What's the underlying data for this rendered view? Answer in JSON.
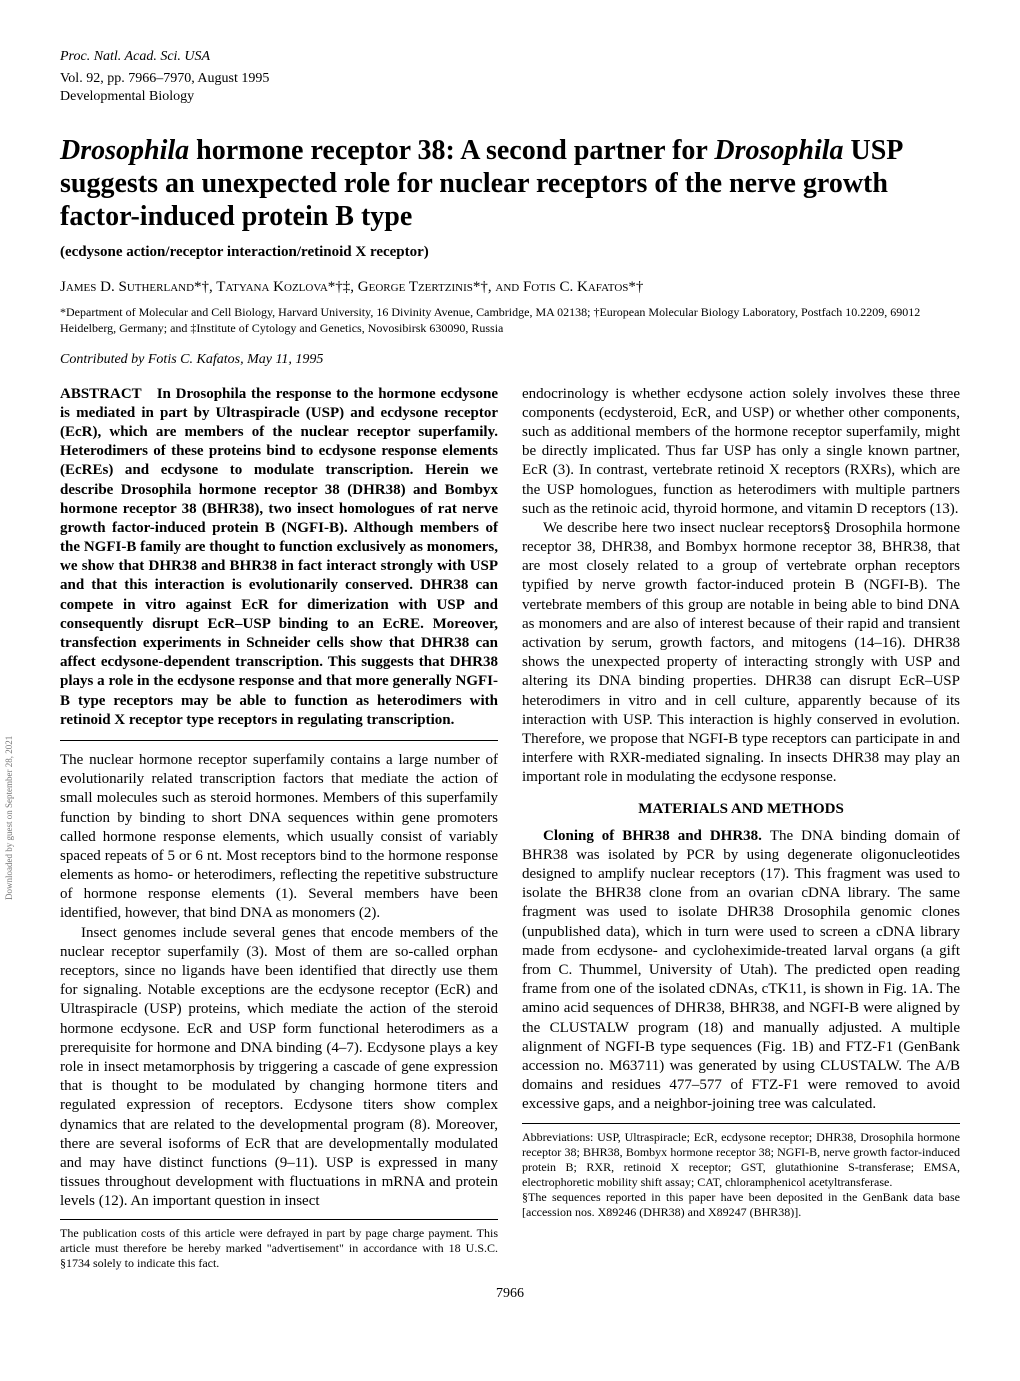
{
  "journal": {
    "line1": "Proc. Natl. Acad. Sci. USA",
    "line2": "Vol. 92, pp. 7966–7970, August 1995",
    "line3": "Developmental Biology"
  },
  "title": {
    "pre": "Drosophila",
    "mid": " hormone receptor 38: A second partner for ",
    "post_italic": "Drosophila",
    "rest": " USP suggests an unexpected role for nuclear receptors of the nerve growth factor-induced protein B type"
  },
  "subtitle": "(ecdysone action/receptor interaction/retinoid X receptor)",
  "authors": "James D. Sutherland*†, Tatyana Kozlova*†‡, George Tzertzinis*†, and Fotis C. Kafatos*†",
  "affiliations": "*Department of Molecular and Cell Biology, Harvard University, 16 Divinity Avenue, Cambridge, MA 02138; †European Molecular Biology Laboratory, Postfach 10.2209, 69012 Heidelberg, Germany; and ‡Institute of Cytology and Genetics, Novosibirsk 630090, Russia",
  "contributed": "Contributed by Fotis C. Kafatos, May 11, 1995",
  "abstract": {
    "label": "ABSTRACT ",
    "text": "In Drosophila the response to the hormone ecdysone is mediated in part by Ultraspiracle (USP) and ecdysone receptor (EcR), which are members of the nuclear receptor superfamily. Heterodimers of these proteins bind to ecdysone response elements (EcREs) and ecdysone to modulate transcription. Herein we describe Drosophila hormone receptor 38 (DHR38) and Bombyx hormone receptor 38 (BHR38), two insect homologues of rat nerve growth factor-induced protein B (NGFI-B). Although members of the NGFI-B family are thought to function exclusively as monomers, we show that DHR38 and BHR38 in fact interact strongly with USP and that this interaction is evolutionarily conserved. DHR38 can compete in vitro against EcR for dimerization with USP and consequently disrupt EcR–USP binding to an EcRE. Moreover, transfection experiments in Schneider cells show that DHR38 can affect ecdysone-dependent transcription. This suggests that DHR38 plays a role in the ecdysone response and that more generally NGFI-B type receptors may be able to function as heterodimers with retinoid X receptor type receptors in regulating transcription."
  },
  "body": {
    "p1": "The nuclear hormone receptor superfamily contains a large number of evolutionarily related transcription factors that mediate the action of small molecules such as steroid hormones. Members of this superfamily function by binding to short DNA sequences within gene promoters called hormone response elements, which usually consist of variably spaced repeats of 5 or 6 nt. Most receptors bind to the hormone response elements as homo- or heterodimers, reflecting the repetitive substructure of hormone response elements (1). Several members have been identified, however, that bind DNA as monomers (2).",
    "p2": "Insect genomes include several genes that encode members of the nuclear receptor superfamily (3). Most of them are so-called orphan receptors, since no ligands have been identified that directly use them for signaling. Notable exceptions are the ecdysone receptor (EcR) and Ultraspiracle (USP) proteins, which mediate the action of the steroid hormone ecdysone. EcR and USP form functional heterodimers as a prerequisite for hormone and DNA binding (4–7). Ecdysone plays a key role in insect metamorphosis by triggering a cascade of gene expression that is thought to be modulated by changing hormone titers and regulated expression of receptors. Ecdysone titers show complex dynamics that are related to the developmental program (8). Moreover, there are several isoforms of EcR that are developmentally modulated and may have distinct functions (9–11). USP is expressed in many tissues throughout development with fluctuations in mRNA and protein levels (12). An important question in insect",
    "p3": "endocrinology is whether ecdysone action solely involves these three components (ecdysteroid, EcR, and USP) or whether other components, such as additional members of the hormone receptor superfamily, might be directly implicated. Thus far USP has only a single known partner, EcR (3). In contrast, vertebrate retinoid X receptors (RXRs), which are the USP homologues, function as heterodimers with multiple partners such as the retinoic acid, thyroid hormone, and vitamin D receptors (13).",
    "p4": "We describe here two insect nuclear receptors§ Drosophila hormone receptor 38, DHR38, and Bombyx hormone receptor 38, BHR38, that are most closely related to a group of vertebrate orphan receptors typified by nerve growth factor-induced protein B (NGFI-B). The vertebrate members of this group are notable in being able to bind DNA as monomers and are also of interest because of their rapid and transient activation by serum, growth factors, and mitogens (14–16). DHR38 shows the unexpected property of interacting strongly with USP and altering its DNA binding properties. DHR38 can disrupt EcR–USP heterodimers in vitro and in cell culture, apparently because of its interaction with USP. This interaction is highly conserved in evolution. Therefore, we propose that NGFI-B type receptors can participate in and interfere with RXR-mediated signaling. In insects DHR38 may play an important role in modulating the ecdysone response.",
    "methods_heading": "MATERIALS AND METHODS",
    "m1_head": "Cloning of BHR38 and DHR38. ",
    "m1": "The DNA binding domain of BHR38 was isolated by PCR by using degenerate oligonucleotides designed to amplify nuclear receptors (17). This fragment was used to isolate the BHR38 clone from an ovarian cDNA library. The same fragment was used to isolate DHR38 Drosophila genomic clones (unpublished data), which in turn were used to screen a cDNA library made from ecdysone- and cycloheximide-treated larval organs (a gift from C. Thummel, University of Utah). The predicted open reading frame from one of the isolated cDNAs, cTK11, is shown in Fig. 1A. The amino acid sequences of DHR38, BHR38, and NGFI-B were aligned by the CLUSTALW program (18) and manually adjusted. A multiple alignment of NGFI-B type sequences (Fig. 1B) and FTZ-F1 (GenBank accession no. M63711) was generated by using CLUSTALW. The A/B domains and residues 477–577 of FTZ-F1 were removed to avoid excessive gaps, and a neighbor-joining tree was calculated."
  },
  "footnotes": {
    "left": "The publication costs of this article were defrayed in part by page charge payment. This article must therefore be hereby marked \"advertisement\" in accordance with 18 U.S.C. §1734 solely to indicate this fact.",
    "right_abbrev": "Abbreviations: USP, Ultraspiracle; EcR, ecdysone receptor; DHR38, Drosophila hormone receptor 38; BHR38, Bombyx hormone receptor 38; NGFI-B, nerve growth factor-induced protein B; RXR, retinoid X receptor; GST, glutathionine S-transferase; EMSA, electrophoretic mobility shift assay; CAT, chloramphenicol acetyltransferase.",
    "right_seq": "§The sequences reported in this paper have been deposited in the GenBank data base [accession nos. X89246 (DHR38) and X89247 (BHR38)]."
  },
  "pagenum": "7966",
  "side_text": "Downloaded by guest on September 28, 2021"
}
